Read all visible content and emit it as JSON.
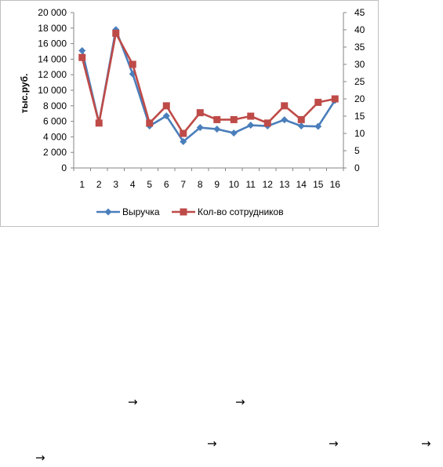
{
  "chart_data": {
    "type": "line",
    "x": [
      1,
      2,
      3,
      4,
      5,
      6,
      7,
      8,
      9,
      10,
      11,
      12,
      13,
      14,
      15,
      16
    ],
    "series": [
      {
        "name": "Выручка",
        "axis": "left",
        "color": "#4a7ebb",
        "marker": "diamond",
        "values": [
          15100,
          5800,
          17800,
          12100,
          5400,
          6700,
          3400,
          5200,
          5000,
          4500,
          5500,
          5400,
          6200,
          5400,
          5350,
          8700
        ]
      },
      {
        "name": "Кол-во сотрудников",
        "axis": "right",
        "color": "#be4b48",
        "marker": "square",
        "values": [
          32,
          13,
          39,
          30,
          13,
          18,
          10,
          16,
          14,
          14,
          15,
          13,
          18,
          14,
          19,
          20
        ]
      }
    ],
    "ylabel": "тыс.руб.",
    "ylim": [
      0,
      20000
    ],
    "y_ticks": [
      "0",
      "2 000",
      "4 000",
      "6 000",
      "8 000",
      "10 000",
      "12 000",
      "14 000",
      "16 000",
      "18 000",
      "20 000"
    ],
    "y2lim": [
      0,
      45
    ],
    "y2_ticks": [
      "0",
      "5",
      "10",
      "15",
      "20",
      "25",
      "30",
      "35",
      "40",
      "45"
    ],
    "x_ticks": [
      "1",
      "2",
      "3",
      "4",
      "5",
      "6",
      "7",
      "8",
      "9",
      "10",
      "11",
      "12",
      "13",
      "14",
      "15",
      "16"
    ],
    "grid": false,
    "legend_position": "bottom"
  },
  "page_text": {
    "arrow": "→"
  }
}
